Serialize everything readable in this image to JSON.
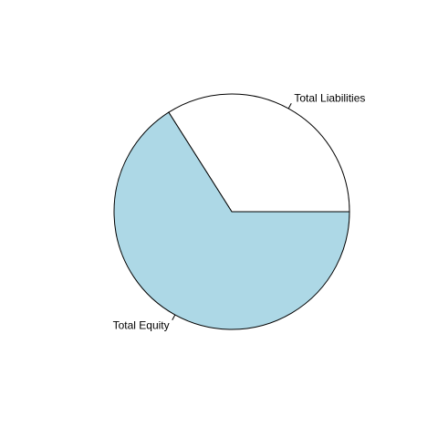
{
  "chart_data": {
    "type": "pie",
    "title": "",
    "start_angle_deg": 0,
    "direction": "counterclockwise",
    "slices": [
      {
        "label": "Total Liabilities",
        "value": 34,
        "color": "#ffffff"
      },
      {
        "label": "Total Equity",
        "value": 66,
        "color": "#add8e6"
      }
    ]
  }
}
